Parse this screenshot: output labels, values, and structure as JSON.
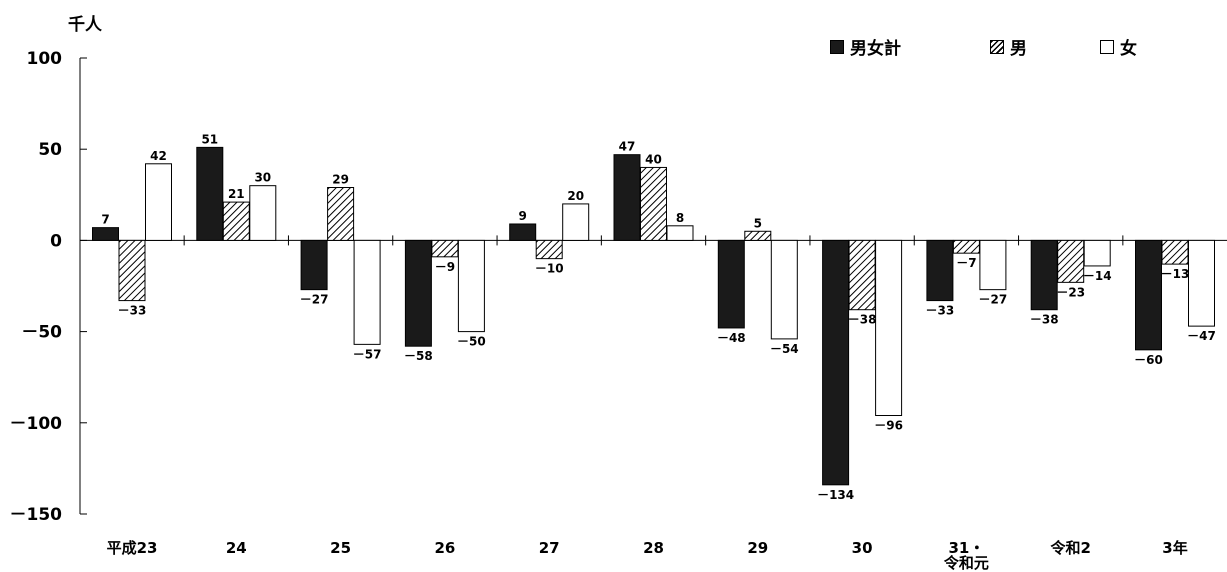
{
  "chart_data": {
    "type": "bar",
    "unit_label": "千人",
    "categories": [
      "平成23",
      "24",
      "25",
      "26",
      "27",
      "28",
      "29",
      "30",
      "31・令和元",
      "令和2",
      "3年"
    ],
    "category_lines": [
      [
        "平成23"
      ],
      [
        "24"
      ],
      [
        "25"
      ],
      [
        "26"
      ],
      [
        "27"
      ],
      [
        "28"
      ],
      [
        "29"
      ],
      [
        "30"
      ],
      [
        "31・",
        "令和元"
      ],
      [
        "令和2"
      ],
      [
        "3年"
      ]
    ],
    "series": [
      {
        "name": "男女計",
        "fill": "solid",
        "color": "#1a1a1a",
        "values": [
          7,
          51,
          -27,
          -58,
          9,
          47,
          -48,
          -134,
          -33,
          -38,
          -60
        ],
        "labels": [
          "7",
          "51",
          "－27",
          "－58",
          "9",
          "47",
          "－48",
          "－134",
          "－33",
          "－38",
          "－60"
        ]
      },
      {
        "name": "男",
        "fill": "hatch",
        "color": "#000000",
        "values": [
          -33,
          21,
          29,
          -9,
          -10,
          40,
          5,
          -38,
          -7,
          -23,
          -13
        ],
        "labels": [
          "－33",
          "21",
          "29",
          "－9",
          "－10",
          "40",
          "5",
          "－38",
          "－7",
          "－23",
          "－13"
        ]
      },
      {
        "name": "女",
        "fill": "white",
        "color": "#ffffff",
        "values": [
          42,
          30,
          -57,
          -50,
          20,
          8,
          -54,
          -96,
          -27,
          -14,
          -47
        ],
        "labels": [
          "42",
          "30",
          "－57",
          "－50",
          "20",
          "8",
          "－54",
          "－96",
          "－27",
          "－14",
          "－47"
        ]
      }
    ],
    "y_ticks": [
      100,
      50,
      0,
      -50,
      -100,
      -150
    ],
    "y_tick_labels": [
      "100",
      "50",
      "0",
      "－50",
      "－100",
      "－150"
    ],
    "ylim": [
      -150,
      100
    ],
    "grid": false,
    "legend_position": "top-right"
  }
}
